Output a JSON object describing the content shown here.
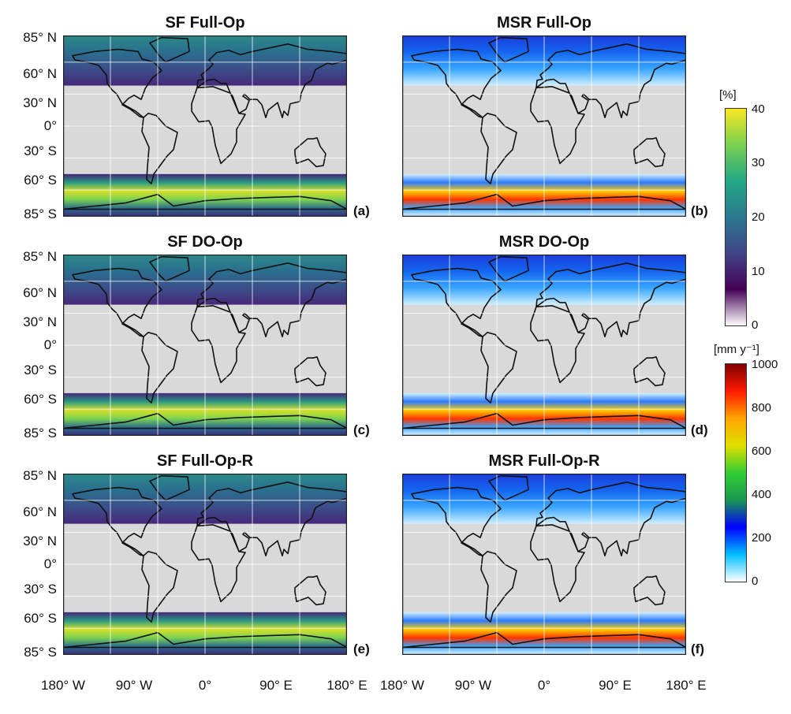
{
  "figure": {
    "panels": [
      {
        "title": "SF Full-Op",
        "letter": "(a)",
        "scale": "percent"
      },
      {
        "title": "MSR Full-Op",
        "letter": "(b)",
        "scale": "precip"
      },
      {
        "title": "SF DO-Op",
        "letter": "(c)",
        "scale": "percent"
      },
      {
        "title": "MSR DO-Op",
        "letter": "(d)",
        "scale": "precip"
      },
      {
        "title": "SF Full-Op-R",
        "letter": "(e)",
        "scale": "percent"
      },
      {
        "title": "MSR Full-Op-R",
        "letter": "(f)",
        "scale": "precip"
      }
    ],
    "lat_labels": [
      "85° N",
      "60° N",
      "30° N",
      "0°",
      "30° S",
      "60° S",
      "85° S"
    ],
    "lon_labels": [
      "180° W",
      "90° W",
      "0°",
      "90° E",
      "180° E"
    ],
    "colorbars": [
      {
        "unit": "[%]",
        "ticks": [
          "40",
          "30",
          "20",
          "10",
          "0"
        ],
        "colors": [
          "#f9e721",
          "#79d151",
          "#22a884",
          "#2a788e",
          "#414487",
          "#440154",
          "#ffffff"
        ]
      },
      {
        "unit": "[mm y⁻¹]",
        "ticks": [
          "1000",
          "800",
          "600",
          "400",
          "200",
          "0"
        ],
        "colors": [
          "#7f0000",
          "#ff1a00",
          "#ffa500",
          "#e0e000",
          "#32cd32",
          "#1a9850",
          "#0000ff",
          "#00bfff",
          "#ffffff"
        ]
      }
    ]
  }
}
